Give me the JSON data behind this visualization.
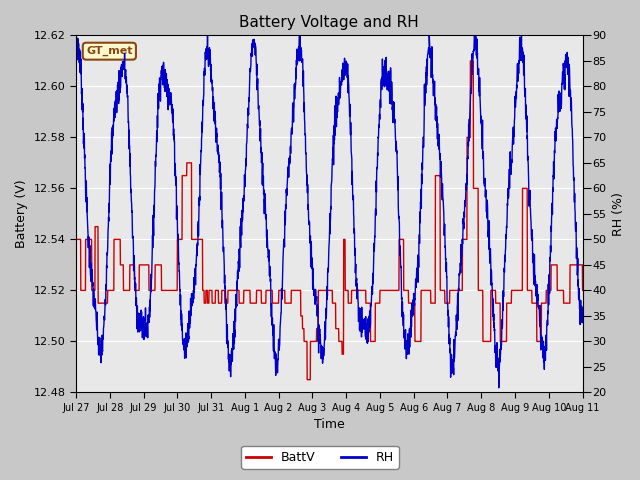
{
  "title": "Battery Voltage and RH",
  "xlabel": "Time",
  "ylabel_left": "Battery (V)",
  "ylabel_right": "RH (%)",
  "annotation": "GT_met",
  "ylim_left": [
    12.48,
    12.62
  ],
  "ylim_right": [
    20,
    90
  ],
  "yticks_left": [
    12.48,
    12.5,
    12.52,
    12.54,
    12.56,
    12.58,
    12.6,
    12.62
  ],
  "yticks_right": [
    20,
    25,
    30,
    35,
    40,
    45,
    50,
    55,
    60,
    65,
    70,
    75,
    80,
    85,
    90
  ],
  "xtick_labels": [
    "Jul 27",
    "Jul 28",
    "Jul 29",
    "Jul 30",
    "Jul 31",
    "Aug 1",
    "Aug 2",
    "Aug 3",
    "Aug 4",
    "Aug 5",
    "Aug 6",
    "Aug 7",
    "Aug 8",
    "Aug 9",
    "Aug 10",
    "Aug 11"
  ],
  "color_battv": "#cc0000",
  "color_rh": "#0000cc",
  "legend_battv": "BattV",
  "legend_rh": "RH",
  "fig_bg_color": "#c8c8c8",
  "plot_bg_color": "#e8e8e8",
  "title_fontsize": 11,
  "axis_label_fontsize": 9,
  "tick_fontsize": 8
}
